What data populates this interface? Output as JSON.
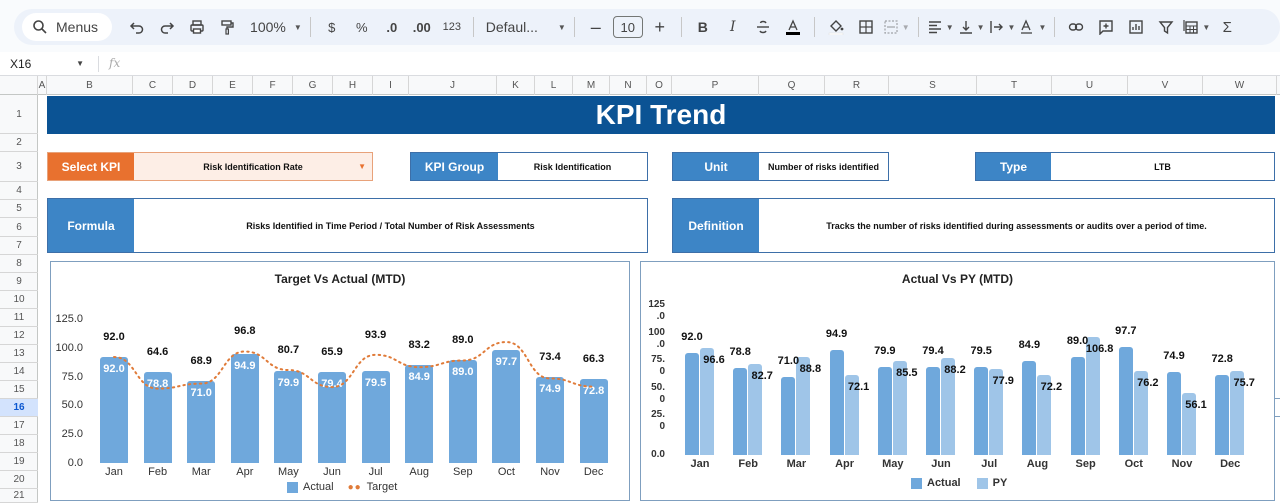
{
  "toolbar": {
    "menus_label": "Menus",
    "zoom": "100%",
    "currency": "$",
    "percent": "%",
    "dec_decrease": ".0",
    "dec_increase": ".00",
    "number_format": "123",
    "font": "Defaul...",
    "font_size": "10",
    "bold": "B",
    "italic": "I",
    "sum": "Σ"
  },
  "formula_bar": {
    "cell_ref": "X16",
    "fx": "fx",
    "value": ""
  },
  "columns": [
    "A",
    "B",
    "C",
    "D",
    "E",
    "F",
    "G",
    "H",
    "I",
    "J",
    "K",
    "L",
    "M",
    "N",
    "O",
    "P",
    "Q",
    "R",
    "S",
    "T",
    "U",
    "V",
    "W"
  ],
  "rows": [
    "1",
    "2",
    "3",
    "4",
    "5",
    "6",
    "7",
    "8",
    "9",
    "10",
    "11",
    "12",
    "13",
    "14",
    "15",
    "16",
    "17",
    "18",
    "19",
    "20",
    "21"
  ],
  "selected_row": "16",
  "dashboard": {
    "title": "KPI Trend",
    "select_kpi_label": "Select KPI",
    "select_kpi_value": "Risk Identification Rate",
    "kpi_group_label": "KPI Group",
    "kpi_group_value": "Risk Identification",
    "unit_label": "Unit",
    "unit_value": "Number of risks identified",
    "type_label": "Type",
    "type_value": "LTB",
    "formula_label": "Formula",
    "formula_value": "Risks Identified in Time Period / Total Number of Risk Assessments",
    "definition_label": "Definition",
    "definition_value": "Tracks the number of risks identified during assessments or audits over a period of time."
  },
  "colors": {
    "title_bg": "#0b5394",
    "label_blue": "#3d85c6",
    "label_orange": "#e8712f",
    "actual_bar": "#6fa8dc",
    "py_bar": "#9fc5e8",
    "target_line": "#e07b39"
  },
  "chart_data": [
    {
      "type": "bar",
      "title": "Target Vs Actual (MTD)",
      "categories": [
        "Jan",
        "Feb",
        "Mar",
        "Apr",
        "May",
        "Jun",
        "Jul",
        "Aug",
        "Sep",
        "Oct",
        "Nov",
        "Dec"
      ],
      "series": [
        {
          "name": "Actual",
          "type": "bar",
          "values": [
            92.0,
            78.8,
            71.0,
            94.9,
            79.9,
            79.4,
            79.5,
            84.9,
            89.0,
            97.7,
            74.9,
            72.8
          ]
        },
        {
          "name": "Target",
          "type": "line-dotted",
          "values": [
            92.0,
            64.6,
            68.9,
            96.8,
            80.7,
            65.9,
            93.9,
            83.2,
            89.0,
            105,
            73.4,
            66.3
          ],
          "labels": [
            "92.0",
            "64.6",
            "68.9",
            "96.8",
            "80.7",
            "65.9",
            "93.9",
            "83.2",
            "89.0",
            "",
            "73.4",
            "66.3"
          ]
        }
      ],
      "yticks": [
        "0.0",
        "25.0",
        "50.0",
        "75.0",
        "100.0",
        "125.0"
      ],
      "ylim": [
        0,
        125
      ],
      "xlabel": "",
      "ylabel": "",
      "legend": [
        "Actual",
        "Target"
      ],
      "legend_position": "bottom",
      "grid": false
    },
    {
      "type": "bar",
      "title": "Actual Vs PY (MTD)",
      "categories": [
        "Jan",
        "Feb",
        "Mar",
        "Apr",
        "May",
        "Jun",
        "Jul",
        "Aug",
        "Sep",
        "Oct",
        "Nov",
        "Dec"
      ],
      "series": [
        {
          "name": "Actual",
          "values": [
            92.0,
            78.8,
            71.0,
            94.9,
            79.9,
            79.4,
            79.5,
            84.9,
            89.0,
            97.7,
            74.9,
            72.8
          ]
        },
        {
          "name": "PY",
          "values": [
            96.6,
            82.7,
            88.8,
            72.1,
            85.5,
            88.2,
            77.9,
            72.2,
            106.8,
            76.2,
            56.1,
            75.7
          ]
        }
      ],
      "yticks": [
        "0.0",
        "25.0",
        "50.0",
        "75.0",
        "100.0",
        "125.0"
      ],
      "ylim": [
        0,
        125
      ],
      "xlabel": "",
      "ylabel": "",
      "legend": [
        "Actual",
        "PY"
      ],
      "legend_position": "bottom",
      "grid": false
    }
  ]
}
